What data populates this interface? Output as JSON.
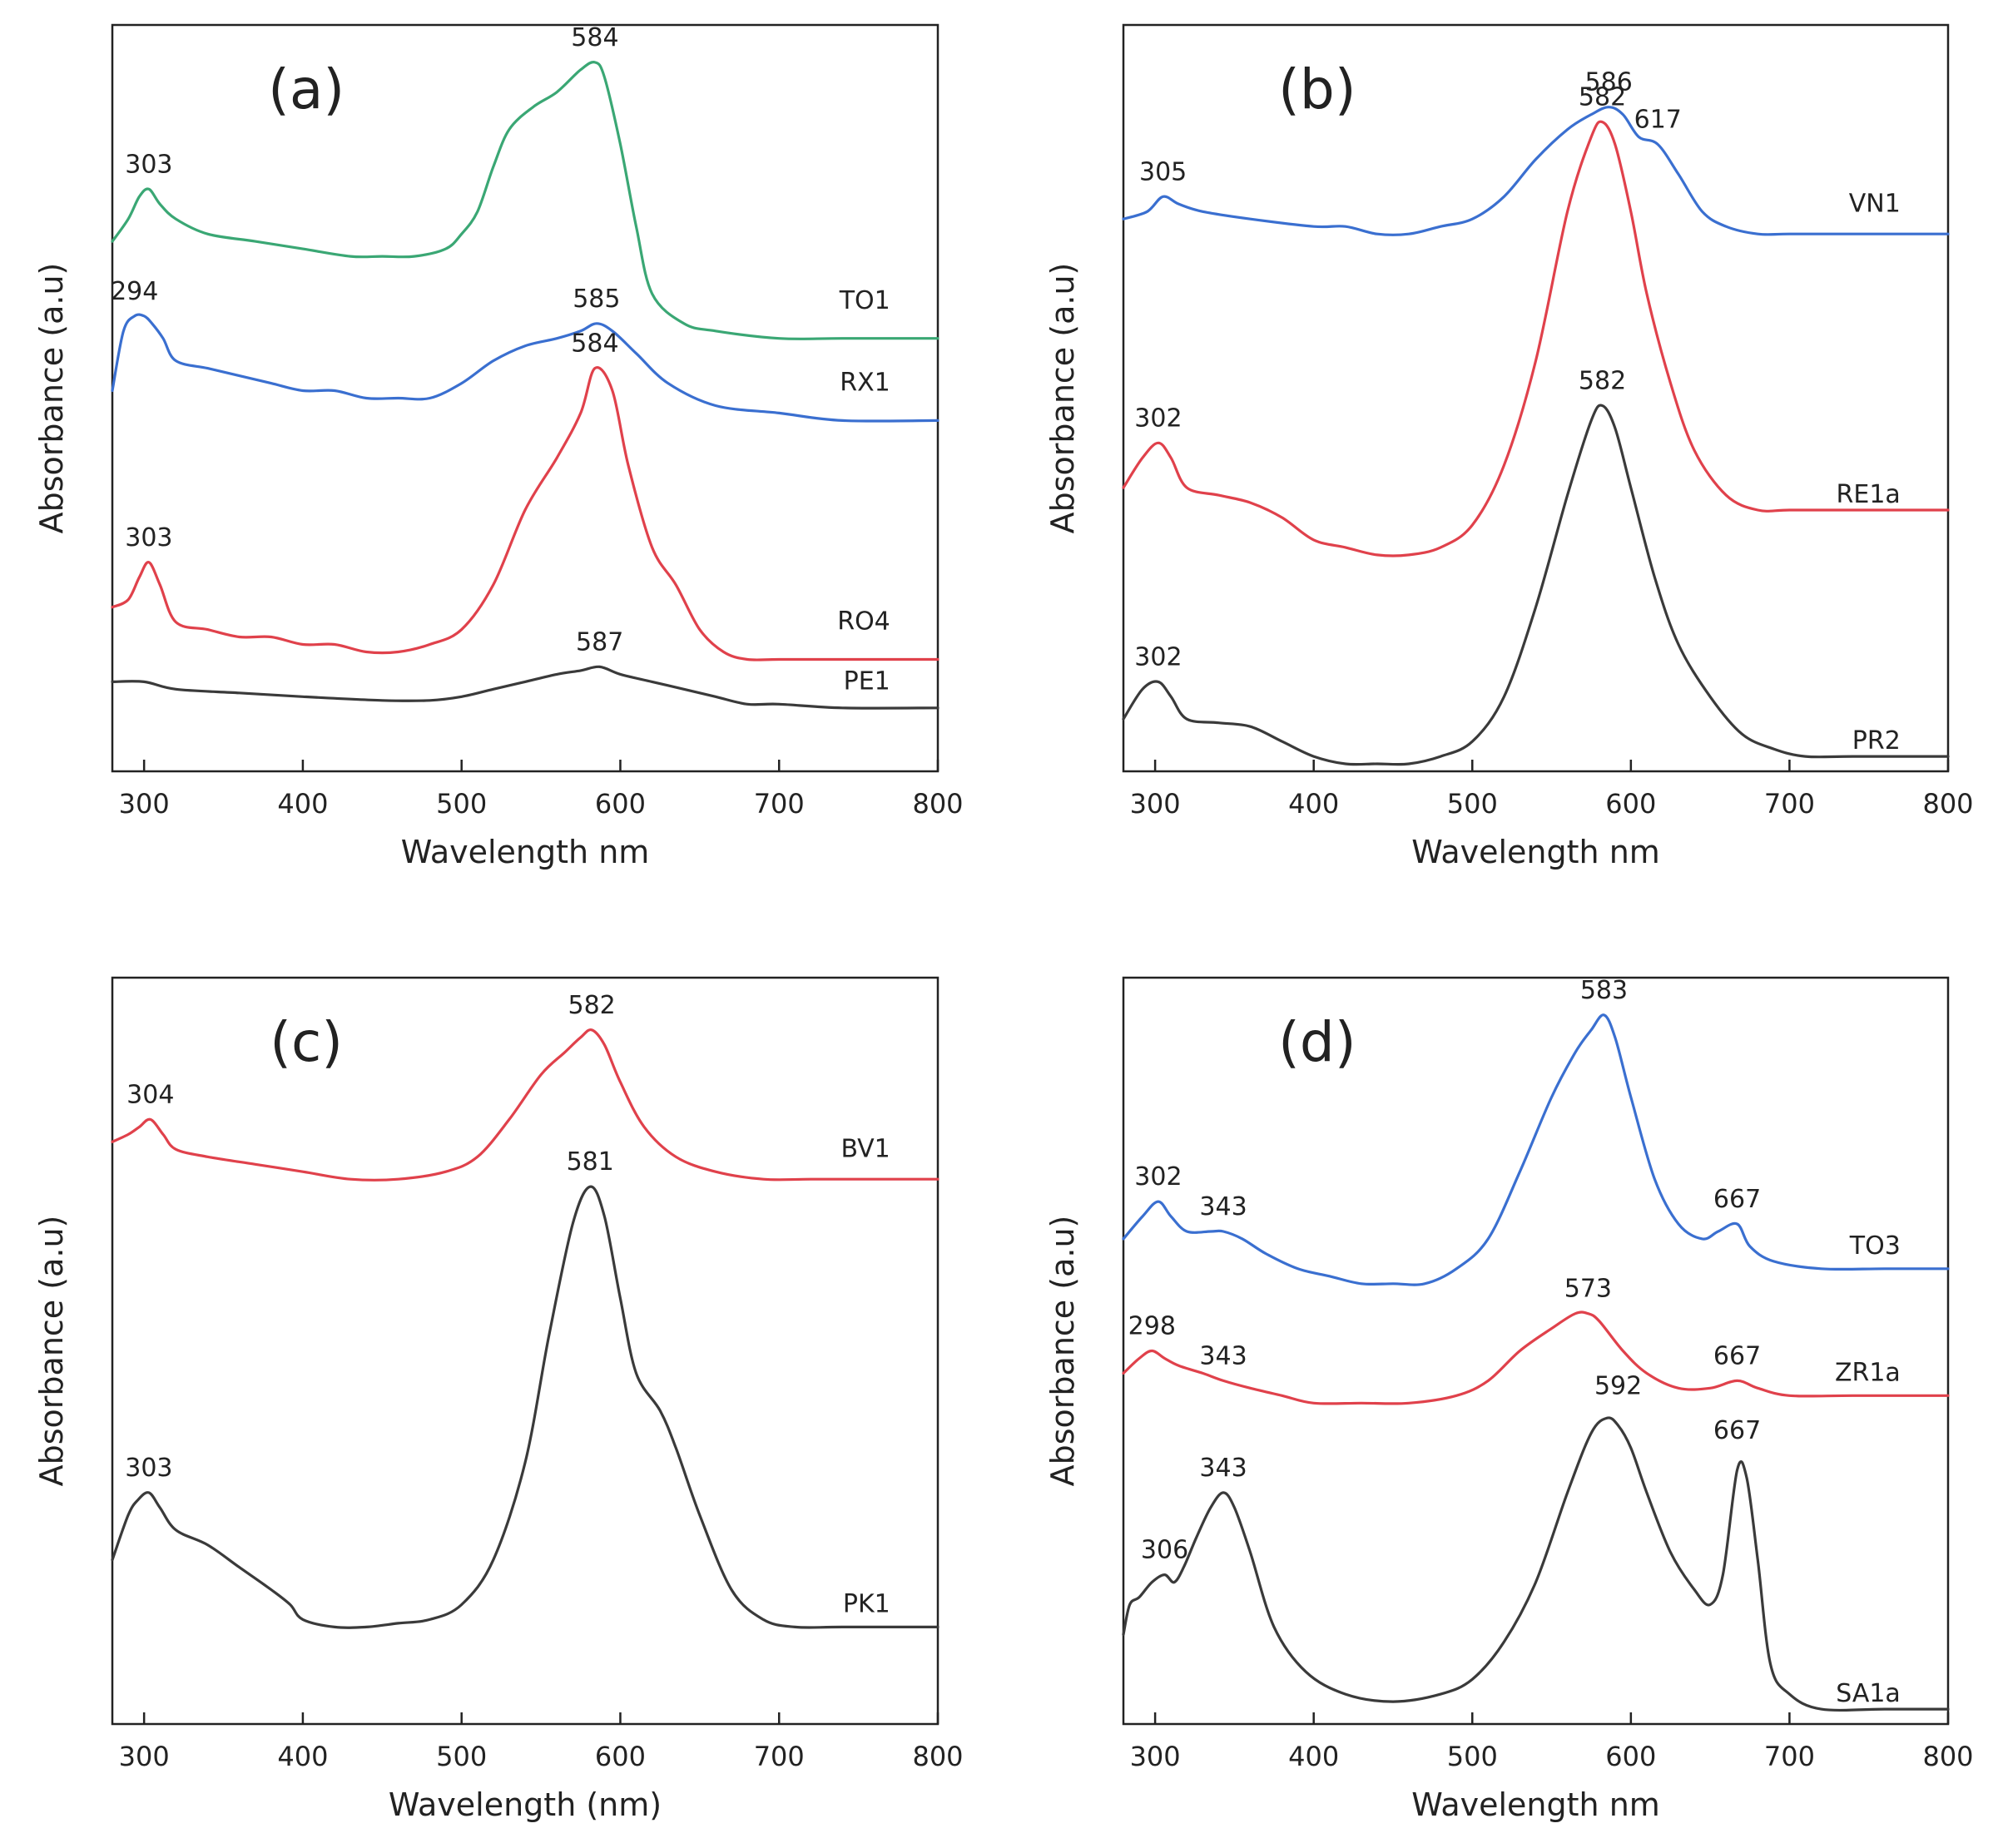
{
  "colors": {
    "green": "#3aa774",
    "blue": "#3a6fd0",
    "red": "#e0414b",
    "black": "#3a3a3a"
  },
  "chart_data": [
    {
      "panel": "(a)",
      "type": "line",
      "xlabel": "Wavelength nm",
      "ylabel": "Absorbance (a.u)",
      "xlim": [
        280,
        800
      ],
      "xticks": [
        300,
        400,
        500,
        600,
        700,
        800
      ],
      "ylim": [
        0,
        100
      ],
      "series": [
        {
          "name": "TO1",
          "color": "green",
          "x": [
            280,
            290,
            297,
            303,
            310,
            320,
            340,
            370,
            400,
            430,
            450,
            470,
            490,
            500,
            510,
            520,
            530,
            545,
            560,
            575,
            584,
            590,
            600,
            610,
            620,
            640,
            660,
            700,
            740,
            800
          ],
          "y": [
            71,
            74,
            77,
            78,
            76,
            74,
            72,
            71,
            70,
            69,
            69,
            69,
            70,
            72,
            75,
            81,
            86,
            89,
            91,
            94,
            95,
            93,
            84,
            73,
            64,
            60,
            59,
            58,
            58,
            58
          ]
        },
        {
          "name": "RX1",
          "color": "blue",
          "x": [
            280,
            287,
            294,
            300,
            305,
            312,
            320,
            340,
            360,
            380,
            400,
            420,
            440,
            460,
            480,
            500,
            520,
            540,
            560,
            575,
            585,
            595,
            610,
            630,
            660,
            700,
            740,
            800
          ],
          "y": [
            51,
            59,
            61,
            61,
            60,
            58,
            55,
            54,
            53,
            52,
            51,
            51,
            50,
            50,
            50,
            52,
            55,
            57,
            58,
            59,
            60,
            59,
            56,
            52,
            49,
            48,
            47,
            47
          ]
        },
        {
          "name": "RO4",
          "color": "red",
          "x": [
            280,
            290,
            297,
            303,
            310,
            320,
            340,
            360,
            380,
            400,
            420,
            440,
            460,
            480,
            500,
            520,
            540,
            560,
            575,
            584,
            595,
            605,
            620,
            635,
            650,
            665,
            680,
            700,
            740,
            800
          ],
          "y": [
            22,
            23,
            26,
            28,
            25,
            20,
            19,
            18,
            18,
            17,
            17,
            16,
            16,
            17,
            19,
            25,
            35,
            42,
            48,
            54,
            51,
            41,
            30,
            25,
            19,
            16,
            15,
            15,
            15,
            15
          ]
        },
        {
          "name": "PE1",
          "color": "black",
          "x": [
            280,
            300,
            320,
            360,
            400,
            450,
            480,
            500,
            520,
            540,
            560,
            575,
            587,
            600,
            620,
            640,
            660,
            680,
            700,
            740,
            800
          ],
          "y": [
            12,
            12,
            11,
            10.5,
            10,
            9.5,
            9.5,
            10,
            11,
            12,
            13,
            13.5,
            14,
            13,
            12,
            11,
            10,
            9,
            9,
            8.5,
            8.5
          ]
        }
      ],
      "peaks": [
        {
          "text": "584",
          "x": 584,
          "y": 95,
          "series": "TO1"
        },
        {
          "text": "303",
          "x": 303,
          "y": 78,
          "series": "TO1"
        },
        {
          "text": "585",
          "x": 585,
          "y": 60,
          "series": "RX1"
        },
        {
          "text": "294",
          "x": 294,
          "y": 61,
          "series": "RX1"
        },
        {
          "text": "584",
          "x": 584,
          "y": 54,
          "series": "RO4"
        },
        {
          "text": "303",
          "x": 303,
          "y": 28,
          "series": "RO4"
        },
        {
          "text": "587",
          "x": 587,
          "y": 14,
          "series": "PE1"
        }
      ],
      "series_labels": [
        {
          "text": "TO1",
          "x": 770,
          "y": 62
        },
        {
          "text": "RX1",
          "x": 770,
          "y": 51
        },
        {
          "text": "RO4",
          "x": 770,
          "y": 19
        },
        {
          "text": "PE1",
          "x": 770,
          "y": 11
        }
      ]
    },
    {
      "panel": "(b)",
      "type": "line",
      "xlabel": "Wavelength nm",
      "ylabel": "Absorbance (a.u)",
      "xlim": [
        280,
        800
      ],
      "xticks": [
        300,
        400,
        500,
        600,
        700,
        800
      ],
      "ylim": [
        0,
        100
      ],
      "series": [
        {
          "name": "VN1",
          "color": "blue",
          "x": [
            280,
            295,
            305,
            315,
            330,
            360,
            400,
            420,
            440,
            460,
            480,
            500,
            520,
            540,
            560,
            575,
            586,
            595,
            605,
            617,
            630,
            645,
            660,
            680,
            700,
            740,
            800
          ],
          "y": [
            74,
            75,
            77,
            76,
            75,
            74,
            73,
            73,
            72,
            72,
            73,
            74,
            77,
            82,
            86,
            88,
            89,
            88,
            85,
            84,
            80,
            75,
            73,
            72,
            72,
            72,
            72
          ]
        },
        {
          "name": "RE1a",
          "color": "red",
          "x": [
            280,
            292,
            302,
            310,
            320,
            340,
            360,
            380,
            400,
            420,
            440,
            460,
            480,
            500,
            520,
            540,
            560,
            575,
            582,
            590,
            600,
            610,
            625,
            640,
            660,
            680,
            700,
            740,
            800
          ],
          "y": [
            38,
            42,
            44,
            42,
            38,
            37,
            36,
            34,
            31,
            30,
            29,
            29,
            30,
            33,
            41,
            55,
            75,
            85,
            87,
            84,
            75,
            64,
            52,
            43,
            37,
            35,
            35,
            35,
            35
          ]
        },
        {
          "name": "PR2",
          "color": "black",
          "x": [
            280,
            292,
            302,
            310,
            320,
            340,
            360,
            380,
            400,
            420,
            440,
            460,
            480,
            500,
            520,
            540,
            560,
            575,
            582,
            590,
            600,
            615,
            630,
            650,
            670,
            690,
            710,
            740,
            800
          ],
          "y": [
            7,
            11,
            12,
            10,
            7,
            6.5,
            6,
            4,
            2,
            1,
            1,
            1,
            2,
            4,
            10,
            22,
            37,
            47,
            49,
            46,
            38,
            26,
            17,
            10,
            5,
            3,
            2,
            2,
            2
          ]
        }
      ],
      "peaks": [
        {
          "text": "586",
          "x": 586,
          "y": 89,
          "series": "VN1"
        },
        {
          "text": "617",
          "x": 617,
          "y": 84,
          "series": "VN1"
        },
        {
          "text": "305",
          "x": 305,
          "y": 77,
          "series": "VN1"
        },
        {
          "text": "582",
          "x": 582,
          "y": 87,
          "series": "RE1a"
        },
        {
          "text": "302",
          "x": 302,
          "y": 44,
          "series": "RE1a"
        },
        {
          "text": "582",
          "x": 582,
          "y": 49,
          "series": "PR2"
        },
        {
          "text": "302",
          "x": 302,
          "y": 12,
          "series": "PR2"
        }
      ],
      "series_labels": [
        {
          "text": "VN1",
          "x": 770,
          "y": 75
        },
        {
          "text": "RE1a",
          "x": 770,
          "y": 36
        },
        {
          "text": "PR2",
          "x": 770,
          "y": 3
        }
      ]
    },
    {
      "panel": "(c)",
      "type": "line",
      "xlabel": "Wavelength (nm)",
      "ylabel": "Absorbance (a.u)",
      "xlim": [
        280,
        800
      ],
      "xticks": [
        300,
        400,
        500,
        600,
        700,
        800
      ],
      "ylim": [
        0,
        100
      ],
      "series": [
        {
          "name": "BV1",
          "color": "red",
          "x": [
            280,
            290,
            297,
            304,
            312,
            320,
            340,
            370,
            400,
            430,
            460,
            490,
            510,
            530,
            550,
            565,
            575,
            582,
            590,
            600,
            615,
            635,
            660,
            690,
            720,
            760,
            800
          ],
          "y": [
            78,
            79,
            80,
            81,
            79,
            77,
            76,
            75,
            74,
            73,
            73,
            74,
            76,
            81,
            87,
            90,
            92,
            93,
            91,
            86,
            80,
            76,
            74,
            73,
            73,
            73,
            73
          ]
        },
        {
          "name": "PK1",
          "color": "black",
          "x": [
            280,
            290,
            296,
            303,
            310,
            320,
            340,
            360,
            380,
            392,
            400,
            420,
            440,
            460,
            480,
            500,
            520,
            540,
            555,
            570,
            581,
            590,
            600,
            610,
            625,
            635,
            650,
            670,
            690,
            710,
            740,
            800
          ],
          "y": [
            22,
            28,
            30,
            31,
            29,
            26,
            24,
            21,
            18,
            16,
            14,
            13,
            13,
            13.5,
            14,
            16,
            22,
            35,
            52,
            67,
            72,
            68,
            57,
            47,
            42,
            37,
            28,
            18,
            14,
            13,
            13,
            13
          ]
        }
      ],
      "peaks": [
        {
          "text": "582",
          "x": 582,
          "y": 93,
          "series": "BV1"
        },
        {
          "text": "304",
          "x": 304,
          "y": 81,
          "series": "BV1"
        },
        {
          "text": "581",
          "x": 581,
          "y": 72,
          "series": "PK1"
        },
        {
          "text": "303",
          "x": 303,
          "y": 31,
          "series": "PK1"
        }
      ],
      "series_labels": [
        {
          "text": "BV1",
          "x": 770,
          "y": 76
        },
        {
          "text": "PK1",
          "x": 770,
          "y": 15
        }
      ]
    },
    {
      "panel": "(d)",
      "type": "line",
      "xlabel": "Wavelength nm",
      "ylabel": "Absorbance (a.u)",
      "xlim": [
        280,
        800
      ],
      "xticks": [
        300,
        400,
        500,
        600,
        700,
        800
      ],
      "ylim": [
        0,
        100
      ],
      "series": [
        {
          "name": "TO3",
          "color": "blue",
          "x": [
            280,
            292,
            302,
            310,
            320,
            335,
            343,
            355,
            370,
            390,
            410,
            430,
            450,
            470,
            490,
            510,
            530,
            550,
            565,
            575,
            583,
            590,
            600,
            615,
            630,
            645,
            655,
            667,
            675,
            690,
            720,
            760,
            800
          ],
          "y": [
            65,
            68,
            70,
            68,
            66,
            66,
            66,
            65,
            63,
            61,
            60,
            59,
            59,
            59,
            61,
            65,
            74,
            84,
            90,
            93,
            95,
            92,
            84,
            73,
            67,
            65,
            66,
            67,
            64,
            62,
            61,
            61,
            61
          ]
        },
        {
          "name": "ZR1a",
          "color": "red",
          "x": [
            280,
            290,
            298,
            306,
            315,
            330,
            343,
            360,
            380,
            400,
            430,
            460,
            490,
            510,
            530,
            550,
            565,
            573,
            580,
            595,
            610,
            630,
            650,
            667,
            680,
            700,
            740,
            800
          ],
          "y": [
            47,
            49,
            50,
            49,
            48,
            47,
            46,
            45,
            44,
            43,
            43,
            43,
            44,
            46,
            50,
            53,
            55,
            55,
            54,
            50,
            47,
            45,
            45,
            46,
            45,
            44,
            44,
            44
          ]
        },
        {
          "name": "SA1a",
          "color": "black",
          "x": [
            280,
            284,
            290,
            298,
            306,
            312,
            318,
            326,
            335,
            343,
            350,
            360,
            375,
            395,
            420,
            450,
            480,
            500,
            520,
            540,
            560,
            575,
            585,
            592,
            600,
            610,
            625,
            640,
            650,
            658,
            667,
            673,
            680,
            688,
            700,
            720,
            760,
            800
          ],
          "y": [
            12,
            16,
            17,
            19,
            20,
            19,
            21,
            25,
            29,
            31,
            29,
            23,
            13,
            7,
            4,
            3,
            4,
            6,
            11,
            19,
            31,
            39,
            41,
            40,
            37,
            31,
            23,
            18,
            16,
            20,
            34,
            33,
            22,
            8,
            4,
            2,
            2,
            2
          ]
        }
      ],
      "peaks": [
        {
          "text": "583",
          "x": 583,
          "y": 95,
          "series": "TO3"
        },
        {
          "text": "302",
          "x": 302,
          "y": 70,
          "series": "TO3"
        },
        {
          "text": "343",
          "x": 343,
          "y": 66,
          "series": "TO3"
        },
        {
          "text": "667",
          "x": 667,
          "y": 67,
          "series": "TO3"
        },
        {
          "text": "573",
          "x": 573,
          "y": 55,
          "series": "ZR1a"
        },
        {
          "text": "298",
          "x": 298,
          "y": 50,
          "series": "ZR1a"
        },
        {
          "text": "343",
          "x": 343,
          "y": 46,
          "series": "ZR1a"
        },
        {
          "text": "667",
          "x": 667,
          "y": 46,
          "series": "ZR1a"
        },
        {
          "text": "592",
          "x": 592,
          "y": 42,
          "series": "SA1a"
        },
        {
          "text": "667",
          "x": 667,
          "y": 36,
          "series": "SA1a"
        },
        {
          "text": "343",
          "x": 343,
          "y": 31,
          "series": "SA1a"
        },
        {
          "text": "306",
          "x": 306,
          "y": 20,
          "series": "SA1a"
        }
      ],
      "series_labels": [
        {
          "text": "TO3",
          "x": 770,
          "y": 63
        },
        {
          "text": "ZR1a",
          "x": 770,
          "y": 46
        },
        {
          "text": "SA1a",
          "x": 770,
          "y": 3
        }
      ]
    }
  ]
}
